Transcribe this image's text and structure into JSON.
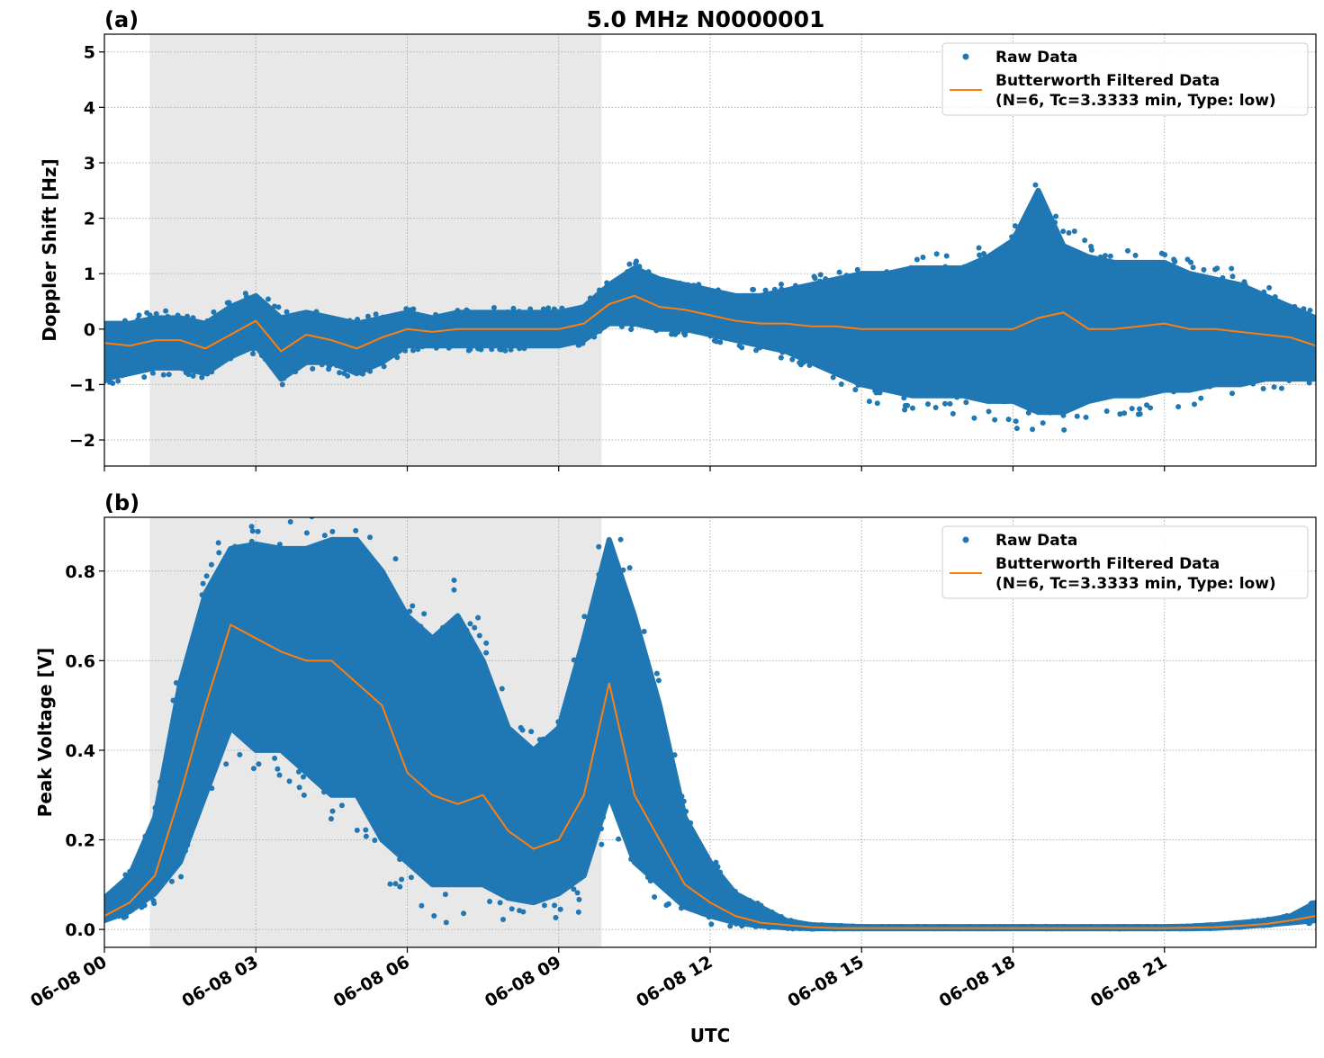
{
  "title": "5.0 MHz N0000001",
  "xlabel": "UTC",
  "colors": {
    "raw": "#1f77b4",
    "filtered": "#ff7f0e",
    "shade": "#e8e8e8",
    "grid": "#b0b0b0"
  },
  "legend": {
    "raw": "Raw Data",
    "filtered_line1": "Butterworth Filtered Data",
    "filtered_line2": "(N=6, Tc=3.3333 min, Type: low)",
    "placement": "top-right"
  },
  "x_ticks": [
    {
      "hour": 0,
      "label": "06-08 00"
    },
    {
      "hour": 3,
      "label": "06-08 03"
    },
    {
      "hour": 6,
      "label": "06-08 06"
    },
    {
      "hour": 9,
      "label": "06-08 09"
    },
    {
      "hour": 12,
      "label": "06-08 12"
    },
    {
      "hour": 15,
      "label": "06-08 15"
    },
    {
      "hour": 18,
      "label": "06-08 18"
    },
    {
      "hour": 21,
      "label": "06-08 21"
    }
  ],
  "chart_data": [
    {
      "type": "scatter",
      "panel_label": "(a)",
      "ylabel": "Doppler Shift [Hz]",
      "xlim_hours_utc": [
        0,
        24
      ],
      "ylim": [
        -2.47,
        5.32
      ],
      "y_ticks": [
        -2,
        -1,
        0,
        1,
        2,
        3,
        4,
        5
      ],
      "y_tick_labels": [
        "−2",
        "−1",
        "0",
        "1",
        "2",
        "3",
        "4",
        "5"
      ],
      "grid": true,
      "shaded_interval_hours_utc": [
        0.9,
        9.85
      ],
      "x_hours_utc": [
        0,
        0.5,
        1,
        1.5,
        2,
        2.5,
        3,
        3.5,
        4,
        4.5,
        5,
        5.5,
        6,
        6.5,
        7,
        7.5,
        8,
        8.5,
        9,
        9.5,
        10,
        10.5,
        11,
        11.5,
        12,
        12.5,
        13,
        13.5,
        14,
        14.5,
        15,
        15.5,
        16,
        16.5,
        17,
        17.5,
        18,
        18.5,
        19,
        19.5,
        20,
        20.5,
        21,
        21.5,
        22,
        22.5,
        23,
        23.5,
        24
      ],
      "raw_min": [
        -0.9,
        -0.8,
        -0.7,
        -0.7,
        -0.8,
        -0.5,
        -0.3,
        -0.9,
        -0.6,
        -0.6,
        -0.8,
        -0.6,
        -0.3,
        -0.3,
        -0.3,
        -0.3,
        -0.3,
        -0.3,
        -0.3,
        -0.2,
        0.1,
        0.1,
        0,
        0,
        -0.1,
        -0.2,
        -0.3,
        -0.4,
        -0.6,
        -0.8,
        -1,
        -1.1,
        -1.2,
        -1.2,
        -1.2,
        -1.3,
        -1.3,
        -1.5,
        -1.5,
        -1.3,
        -1.2,
        -1.2,
        -1.1,
        -1.1,
        -1,
        -1,
        -0.9,
        -0.9,
        -0.9
      ],
      "raw_max": [
        0.1,
        0.1,
        0.2,
        0.2,
        0.1,
        0.4,
        0.6,
        0.2,
        0.3,
        0.2,
        0.1,
        0.2,
        0.3,
        0.2,
        0.3,
        0.3,
        0.3,
        0.3,
        0.3,
        0.4,
        0.8,
        1.1,
        0.9,
        0.8,
        0.7,
        0.6,
        0.6,
        0.7,
        0.8,
        0.9,
        1,
        1,
        1.1,
        1.1,
        1.1,
        1.3,
        1.6,
        2.5,
        1.5,
        1.3,
        1.2,
        1.2,
        1.2,
        1.0,
        0.9,
        0.8,
        0.6,
        0.4,
        0.2
      ],
      "filtered": [
        -0.25,
        -0.3,
        -0.2,
        -0.2,
        -0.35,
        -0.1,
        0.15,
        -0.4,
        -0.1,
        -0.2,
        -0.35,
        -0.15,
        0,
        -0.05,
        0,
        0,
        0,
        0,
        0,
        0.1,
        0.45,
        0.6,
        0.4,
        0.35,
        0.25,
        0.15,
        0.1,
        0.1,
        0.05,
        0.05,
        0,
        0,
        0,
        0,
        0,
        0,
        0,
        0.2,
        0.3,
        0,
        0,
        0.05,
        0.1,
        0,
        0,
        -0.05,
        -0.1,
        -0.15,
        -0.3
      ]
    },
    {
      "type": "scatter",
      "panel_label": "(b)",
      "ylabel": "Peak Voltage [V]",
      "xlim_hours_utc": [
        0,
        24
      ],
      "ylim": [
        -0.04,
        0.92
      ],
      "y_ticks": [
        0,
        0.2,
        0.4,
        0.6,
        0.8
      ],
      "y_tick_labels": [
        "0.0",
        "0.2",
        "0.4",
        "0.6",
        "0.8"
      ],
      "grid": true,
      "shaded_interval_hours_utc": [
        0.9,
        9.85
      ],
      "x_hours_utc": [
        0,
        0.5,
        1,
        1.5,
        2,
        2.5,
        3,
        3.5,
        4,
        4.5,
        5,
        5.5,
        6,
        6.5,
        7,
        7.5,
        8,
        8.5,
        9,
        9.5,
        10,
        10.5,
        11,
        11.5,
        12,
        12.5,
        13,
        13.5,
        14,
        14.5,
        15,
        15.5,
        16,
        16.5,
        17,
        17.5,
        18,
        18.5,
        19,
        19.5,
        20,
        20.5,
        21,
        21.5,
        22,
        22.5,
        23,
        23.5,
        24
      ],
      "raw_min": [
        0.02,
        0.04,
        0.08,
        0.15,
        0.3,
        0.45,
        0.4,
        0.4,
        0.35,
        0.3,
        0.3,
        0.2,
        0.15,
        0.1,
        0.1,
        0.1,
        0.07,
        0.06,
        0.08,
        0.12,
        0.3,
        0.15,
        0.1,
        0.05,
        0.03,
        0.015,
        0.008,
        0.004,
        0.002,
        0.002,
        0.002,
        0.002,
        0.002,
        0.002,
        0.002,
        0.002,
        0.002,
        0.002,
        0.002,
        0.002,
        0.002,
        0.002,
        0.002,
        0.002,
        0.003,
        0.006,
        0.01,
        0.015,
        0.02
      ],
      "raw_max": [
        0.07,
        0.12,
        0.25,
        0.55,
        0.75,
        0.85,
        0.86,
        0.85,
        0.85,
        0.87,
        0.87,
        0.8,
        0.7,
        0.65,
        0.7,
        0.6,
        0.45,
        0.4,
        0.45,
        0.65,
        0.87,
        0.7,
        0.5,
        0.25,
        0.15,
        0.08,
        0.05,
        0.02,
        0.01,
        0.008,
        0.006,
        0.006,
        0.006,
        0.006,
        0.006,
        0.006,
        0.006,
        0.006,
        0.006,
        0.006,
        0.006,
        0.006,
        0.006,
        0.007,
        0.01,
        0.015,
        0.02,
        0.03,
        0.06
      ],
      "filtered": [
        0.03,
        0.06,
        0.12,
        0.3,
        0.5,
        0.68,
        0.65,
        0.62,
        0.6,
        0.6,
        0.55,
        0.5,
        0.35,
        0.3,
        0.28,
        0.3,
        0.22,
        0.18,
        0.2,
        0.3,
        0.55,
        0.3,
        0.2,
        0.1,
        0.06,
        0.03,
        0.015,
        0.01,
        0.005,
        0.003,
        0.003,
        0.003,
        0.003,
        0.003,
        0.003,
        0.003,
        0.003,
        0.003,
        0.003,
        0.003,
        0.003,
        0.003,
        0.003,
        0.004,
        0.005,
        0.008,
        0.012,
        0.02,
        0.03
      ]
    }
  ]
}
